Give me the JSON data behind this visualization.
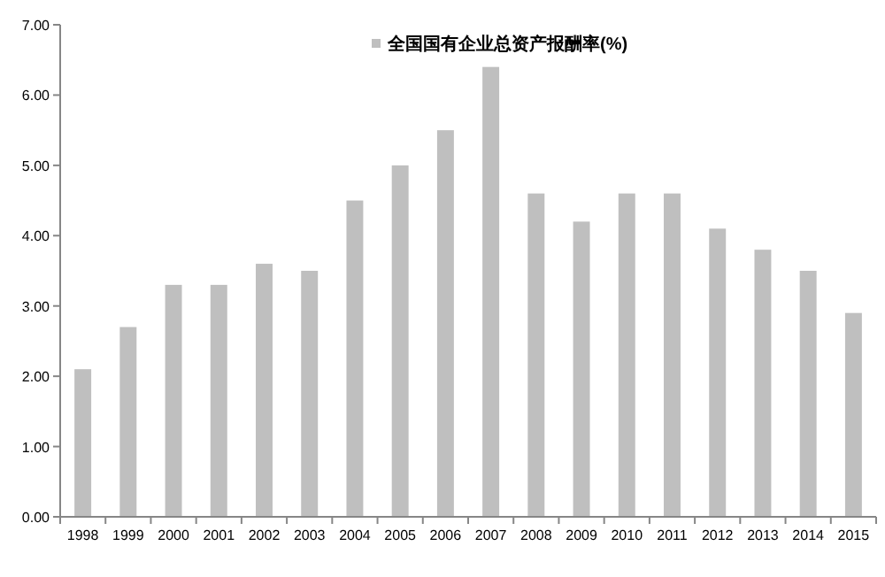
{
  "chart_data": {
    "type": "bar",
    "categories": [
      "1998",
      "1999",
      "2000",
      "2001",
      "2002",
      "2003",
      "2004",
      "2005",
      "2006",
      "2007",
      "2008",
      "2009",
      "2010",
      "2011",
      "2012",
      "2013",
      "2014",
      "2015"
    ],
    "series": [
      {
        "name": "全国国有企业总资产报酬率(%)",
        "color": "#bfbfbf",
        "values": [
          2.1,
          2.7,
          3.3,
          3.3,
          3.6,
          3.5,
          4.5,
          5.0,
          5.5,
          6.4,
          4.6,
          4.2,
          4.6,
          4.6,
          4.1,
          3.8,
          3.5,
          2.9
        ]
      }
    ],
    "ylim": [
      0,
      7
    ],
    "yticks": [
      {
        "value": 0,
        "label": "0.00"
      },
      {
        "value": 1,
        "label": "1.00"
      },
      {
        "value": 2,
        "label": "2.00"
      },
      {
        "value": 3,
        "label": "3.00"
      },
      {
        "value": 4,
        "label": "4.00"
      },
      {
        "value": 5,
        "label": "5.00"
      },
      {
        "value": 6,
        "label": "6.00"
      },
      {
        "value": 7,
        "label": "7.00"
      }
    ],
    "grid": false,
    "legend": "top"
  }
}
